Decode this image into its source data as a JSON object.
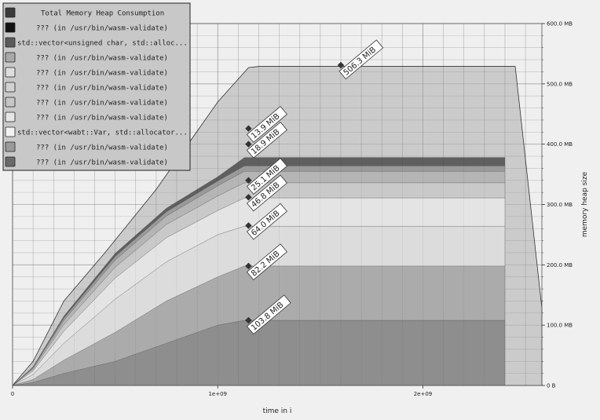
{
  "chart_data": {
    "type": "area",
    "stacked": true,
    "xlabel": "time in i",
    "ylabel": "memory heap size",
    "xlim": [
      0,
      2580000000
    ],
    "ylim": [
      0,
      600
    ],
    "x_ticks": [
      {
        "value": 0,
        "label": "0"
      },
      {
        "value": 1000000000,
        "label": "1e+09"
      },
      {
        "value": 2000000000,
        "label": "2e+09"
      }
    ],
    "y_ticks": [
      {
        "value": 0,
        "label": "0 B"
      },
      {
        "value": 100,
        "label": "100.0 MB"
      },
      {
        "value": 200,
        "label": "200.0 MB"
      },
      {
        "value": 300,
        "label": "300.0 MB"
      },
      {
        "value": 400,
        "label": "400.0 MB"
      },
      {
        "value": 500,
        "label": "500.0 MB"
      },
      {
        "value": 600,
        "label": "600.0 MB"
      }
    ],
    "grid": true,
    "legend_position": "top-left",
    "legend": [
      {
        "label": "Total Memory Heap Consumption",
        "color": "#3a3a3a"
      },
      {
        "label": "??? (in /usr/bin/wasm-validate)",
        "color": "#111111"
      },
      {
        "label": "std::vector<unsigned char, std::alloc...",
        "color": "#5a5a5a"
      },
      {
        "label": "??? (in /usr/bin/wasm-validate)",
        "color": "#a8a8a8"
      },
      {
        "label": "??? (in /usr/bin/wasm-validate)",
        "color": "#dddddd"
      },
      {
        "label": "??? (in /usr/bin/wasm-validate)",
        "color": "#d2d2d2"
      },
      {
        "label": "??? (in /usr/bin/wasm-validate)",
        "color": "#c6c6c6"
      },
      {
        "label": "??? (in /usr/bin/wasm-validate)",
        "color": "#e6e6e6"
      },
      {
        "label": "std::vector<wabt::Var, std::allocator...",
        "color": "#f2f2f2"
      },
      {
        "label": "??? (in /usr/bin/wasm-validate)",
        "color": "#9a9a9a"
      },
      {
        "label": "??? (in /usr/bin/wasm-validate)",
        "color": "#6a6a6a"
      }
    ],
    "total": {
      "x": [
        0,
        100000000,
        250000000,
        450000000,
        700000000,
        1000000000,
        1150000000,
        1200000000,
        1650000000,
        2450000000,
        2580000000
      ],
      "y": [
        0,
        40,
        140,
        220,
        325,
        470,
        527,
        529,
        529,
        529,
        128
      ]
    },
    "x": [
      0,
      100000000,
      250000000,
      500000000,
      750000000,
      1000000000,
      1130000000,
      2400000000
    ],
    "series": [
      {
        "fill": "#8e8e8e",
        "values": [
          0,
          5,
          20,
          40,
          70,
          100,
          108,
          108
        ]
      },
      {
        "fill": "#ababab",
        "values": [
          0,
          5,
          22,
          48,
          70,
          80,
          90,
          90
        ]
      },
      {
        "fill": "#dcdcdc",
        "values": [
          0,
          8,
          28,
          55,
          65,
          70,
          66,
          66
        ]
      },
      {
        "fill": "#e4e4e4",
        "values": [
          0,
          6,
          20,
          35,
          40,
          40,
          47,
          47
        ]
      },
      {
        "fill": "#c9c9c9",
        "values": [
          0,
          3,
          11,
          18,
          22,
          24,
          25,
          25
        ]
      },
      {
        "fill": "#b5b5b5",
        "values": [
          0,
          2,
          7,
          12,
          14,
          17,
          19,
          19
        ]
      },
      {
        "fill": "#9a9a9a",
        "values": [
          0,
          1,
          4,
          6,
          7,
          8,
          9,
          9
        ]
      },
      {
        "fill": "#5f5f5f",
        "values": [
          0,
          1,
          3,
          5,
          6,
          7,
          14,
          14
        ]
      }
    ],
    "annotations": [
      {
        "label": "506.3 MiB",
        "x": 1600000000,
        "y": 531
      },
      {
        "label": "13.9 MiB",
        "x": 1150000000,
        "y": 426
      },
      {
        "label": "18.9 MiB",
        "x": 1150000000,
        "y": 400
      },
      {
        "label": "25.1 MiB",
        "x": 1150000000,
        "y": 340
      },
      {
        "label": "46.8 MiB",
        "x": 1150000000,
        "y": 312
      },
      {
        "label": "64.0 MiB",
        "x": 1150000000,
        "y": 265
      },
      {
        "label": "82.2 MiB",
        "x": 1150000000,
        "y": 198
      },
      {
        "label": "103.8 MiB",
        "x": 1150000000,
        "y": 108
      }
    ]
  }
}
